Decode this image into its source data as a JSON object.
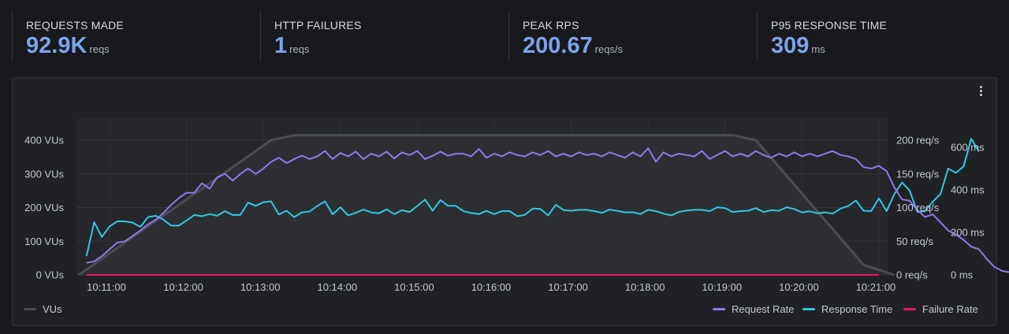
{
  "stats": [
    {
      "label": "REQUESTS MADE",
      "value": "92.9K",
      "unit": "reqs"
    },
    {
      "label": "HTTP FAILURES",
      "value": "1",
      "unit": "reqs"
    },
    {
      "label": "PEAK RPS",
      "value": "200.67",
      "unit": "reqs/s"
    },
    {
      "label": "P95 RESPONSE TIME",
      "value": "309",
      "unit": "ms"
    }
  ],
  "legend": {
    "vus": "VUs",
    "request_rate": "Request Rate",
    "response_time": "Response Time",
    "failure_rate": "Failure Rate"
  },
  "colors": {
    "vus": "#4a4c52",
    "request_rate": "#9277f0",
    "response_time": "#2ec9e4",
    "failure_rate": "#e8175d",
    "stat_value": "#7ea2ee"
  },
  "chart_data": {
    "type": "line",
    "x_ticks": [
      "10:11:00",
      "10:12:00",
      "10:13:00",
      "10:14:00",
      "10:15:00",
      "10:16:00",
      "10:17:00",
      "10:18:00",
      "10:19:00",
      "10:20:00",
      "10:21:00"
    ],
    "x_range_min": [
      -0.6,
      10.3
    ],
    "axes": {
      "left": {
        "unit": "VUs",
        "ticks": [
          "0 VUs",
          "100 VUs",
          "200 VUs",
          "300 VUs",
          "400 VUs"
        ],
        "range": [
          0,
          400
        ]
      },
      "right1": {
        "unit": "req/s",
        "ticks": [
          "0 req/s",
          "50 req/s",
          "100 req/s",
          "150 req/s",
          "200 req/s"
        ],
        "range": [
          0,
          200
        ]
      },
      "right2": {
        "unit": "ms",
        "ticks": [
          "0 ms",
          "200 ms",
          "400 ms",
          "600 ms"
        ],
        "range": [
          0,
          600
        ]
      }
    },
    "series": [
      {
        "name": "VUs",
        "axis": "left",
        "x": [
          -0.4,
          2.1,
          2.4,
          8.1,
          8.4,
          9.8,
          10.2
        ],
        "values": [
          0,
          400,
          415,
          415,
          400,
          30,
          0
        ]
      },
      {
        "name": "Request Rate",
        "axis": "right1",
        "x_start": -0.3,
        "x_step": 0.1,
        "values": [
          18,
          20,
          28,
          38,
          48,
          50,
          58,
          66,
          75,
          82,
          92,
          104,
          114,
          122,
          122,
          136,
          128,
          145,
          150,
          140,
          150,
          158,
          150,
          158,
          168,
          174,
          166,
          172,
          177,
          172,
          176,
          184,
          172,
          181,
          176,
          183,
          172,
          180,
          176,
          183,
          173,
          182,
          178,
          184,
          172,
          177,
          183,
          177,
          180,
          180,
          176,
          187,
          174,
          180,
          176,
          182,
          178,
          176,
          182,
          178,
          184,
          176,
          180,
          176,
          182,
          178,
          180,
          176,
          182,
          178,
          174,
          182,
          176,
          188,
          168,
          182,
          176,
          180,
          178,
          176,
          184,
          172,
          178,
          184,
          176,
          180,
          176,
          184,
          178,
          174,
          180,
          176,
          182,
          176,
          180,
          176,
          180,
          184,
          178,
          176,
          172,
          160,
          158,
          162,
          154,
          130,
          112,
          110,
          96,
          86,
          90,
          78,
          66,
          60,
          52,
          42,
          38,
          24,
          12,
          6,
          4,
          2,
          1,
          0
        ]
      },
      {
        "name": "Response Time",
        "axis": "right2",
        "x_start": -0.3,
        "x_step": 0.1,
        "values": [
          88,
          248,
          178,
          228,
          252,
          252,
          246,
          226,
          272,
          278,
          260,
          232,
          232,
          256,
          282,
          276,
          286,
          278,
          300,
          282,
          282,
          340,
          325,
          342,
          346,
          284,
          302,
          272,
          294,
          298,
          324,
          346,
          285,
          318,
          280,
          292,
          307,
          294,
          290,
          308,
          286,
          304,
          296,
          324,
          354,
          302,
          352,
          325,
          325,
          300,
          291,
          286,
          301,
          286,
          300,
          300,
          276,
          283,
          312,
          310,
          280,
          330,
          305,
          302,
          306,
          306,
          300,
          292,
          307,
          301,
          294,
          295,
          286,
          306,
          300,
          288,
          280,
          296,
          303,
          306,
          306,
          300,
          318,
          314,
          296,
          300,
          302,
          314,
          296,
          304,
          302,
          318,
          310,
          294,
          299,
          290,
          294,
          288,
          312,
          324,
          350,
          302,
          300,
          360,
          300,
          380,
          435,
          396,
          296,
          300,
          345,
          380,
          500,
          480,
          510,
          640,
          580
        ]
      },
      {
        "name": "Failure Rate",
        "axis": "right1",
        "x": [
          -0.3,
          10.0
        ],
        "values": [
          0,
          0
        ]
      }
    ]
  }
}
